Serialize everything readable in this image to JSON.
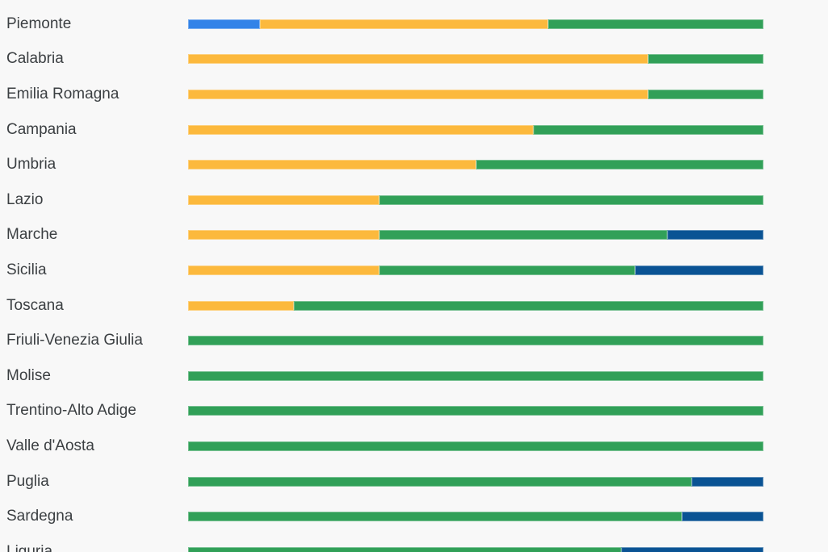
{
  "chart_data": {
    "type": "bar",
    "orientation": "horizontal",
    "stacked": true,
    "value_unit": "percent_of_row_width",
    "x_range": [
      0,
      100
    ],
    "grid": false,
    "legend": "none",
    "title": "",
    "xlabel": "",
    "ylabel": "",
    "categories": [
      "Piemonte",
      "Calabria",
      "Emilia Romagna",
      "Campania",
      "Umbria",
      "Lazio",
      "Marche",
      "Sicilia",
      "Toscana",
      "Friuli-Venezia Giulia",
      "Molise",
      "Trentino-Alto Adige",
      "Valle d'Aosta",
      "Puglia",
      "Sardegna",
      "Liguria"
    ],
    "series_colors": {
      "blue": "#3383e8",
      "orange": "#fcb93d",
      "green": "#31a058",
      "navy": "#0a5394"
    },
    "rows": [
      {
        "label": "Piemonte",
        "segments": [
          {
            "series": "blue",
            "value": 12.5
          },
          {
            "series": "orange",
            "value": 50.0
          },
          {
            "series": "green",
            "value": 37.5
          }
        ]
      },
      {
        "label": "Calabria",
        "segments": [
          {
            "series": "orange",
            "value": 80.0
          },
          {
            "series": "green",
            "value": 20.0
          }
        ]
      },
      {
        "label": "Emilia Romagna",
        "segments": [
          {
            "series": "orange",
            "value": 80.0
          },
          {
            "series": "green",
            "value": 20.0
          }
        ]
      },
      {
        "label": "Campania",
        "segments": [
          {
            "series": "orange",
            "value": 60.0
          },
          {
            "series": "green",
            "value": 40.0
          }
        ]
      },
      {
        "label": "Umbria",
        "segments": [
          {
            "series": "orange",
            "value": 50.0
          },
          {
            "series": "green",
            "value": 50.0
          }
        ]
      },
      {
        "label": "Lazio",
        "segments": [
          {
            "series": "orange",
            "value": 33.3
          },
          {
            "series": "green",
            "value": 66.7
          }
        ]
      },
      {
        "label": "Marche",
        "segments": [
          {
            "series": "orange",
            "value": 33.3
          },
          {
            "series": "green",
            "value": 50.0
          },
          {
            "series": "navy",
            "value": 16.7
          }
        ]
      },
      {
        "label": "Sicilia",
        "segments": [
          {
            "series": "orange",
            "value": 33.3
          },
          {
            "series": "green",
            "value": 44.4
          },
          {
            "series": "navy",
            "value": 22.3
          }
        ]
      },
      {
        "label": "Toscana",
        "segments": [
          {
            "series": "orange",
            "value": 18.4
          },
          {
            "series": "green",
            "value": 81.6
          }
        ]
      },
      {
        "label": "Friuli-Venezia Giulia",
        "segments": [
          {
            "series": "green",
            "value": 100.0
          }
        ]
      },
      {
        "label": "Molise",
        "segments": [
          {
            "series": "green",
            "value": 100.0
          }
        ]
      },
      {
        "label": "Trentino-Alto Adige",
        "segments": [
          {
            "series": "green",
            "value": 100.0
          }
        ]
      },
      {
        "label": "Valle d'Aosta",
        "segments": [
          {
            "series": "green",
            "value": 100.0
          }
        ]
      },
      {
        "label": "Puglia",
        "segments": [
          {
            "series": "green",
            "value": 87.5
          },
          {
            "series": "navy",
            "value": 12.5
          }
        ]
      },
      {
        "label": "Sardegna",
        "segments": [
          {
            "series": "green",
            "value": 85.8
          },
          {
            "series": "navy",
            "value": 14.2
          }
        ]
      },
      {
        "label": "Liguria",
        "segments": [
          {
            "series": "green",
            "value": 75.3
          },
          {
            "series": "navy",
            "value": 24.7
          }
        ]
      }
    ]
  },
  "colors": {
    "background": "#f8f8f8",
    "label_text": "#3b3f42"
  }
}
